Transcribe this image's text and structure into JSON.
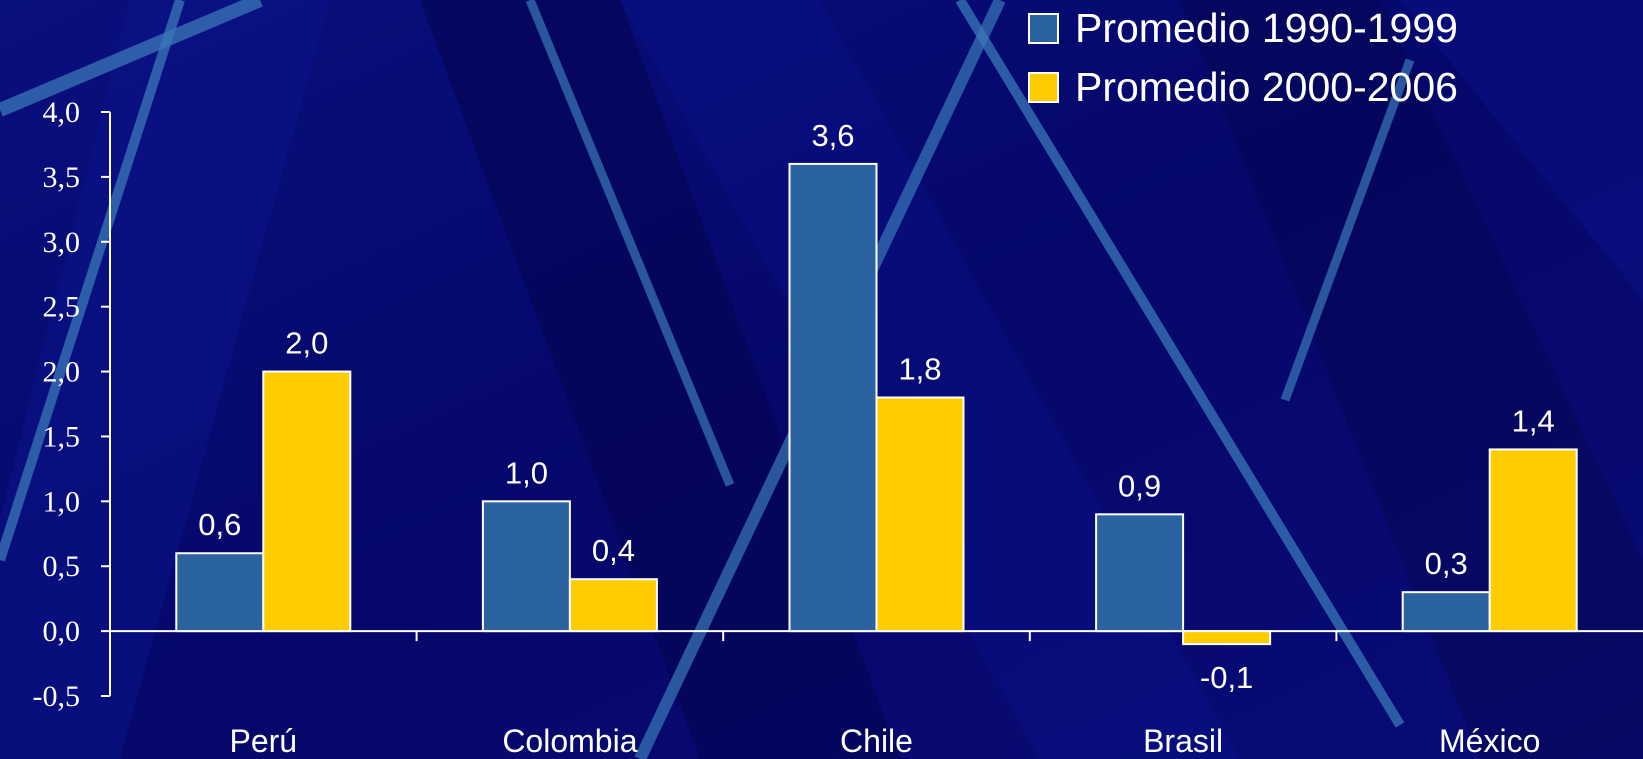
{
  "chart_data": {
    "type": "bar",
    "title": "",
    "xlabel": "",
    "ylabel": "",
    "categories": [
      "Perú",
      "Colombia",
      "Chile",
      "Brasil",
      "México"
    ],
    "series": [
      {
        "name": "Promedio 1990-1999",
        "values": [
          0.6,
          1.0,
          3.6,
          0.9,
          0.3
        ],
        "labels": [
          "0,6",
          "1,0",
          "3,6",
          "0,9",
          "0,3"
        ],
        "color": "#2b62a0"
      },
      {
        "name": "Promedio 2000-2006",
        "values": [
          2.0,
          0.4,
          1.8,
          -0.1,
          1.4
        ],
        "labels": [
          "2,0",
          "0,4",
          "1,8",
          "-0,1",
          "1,4"
        ],
        "color": "#ffcc00"
      }
    ],
    "ylim": [
      -0.5,
      4.0
    ],
    "yticks": [
      -0.5,
      0.0,
      0.5,
      1.0,
      1.5,
      2.0,
      2.5,
      3.0,
      3.5,
      4.0
    ],
    "ytick_labels": [
      "-0,5",
      "0,0",
      "0,5",
      "1,0",
      "1,5",
      "2,0",
      "2,5",
      "3,0",
      "3,5",
      "4,0"
    ],
    "grid": false,
    "legend_position": "top-right"
  },
  "colors": {
    "background": "#05076a",
    "axis": "#ffffff",
    "bar_outline": "#ffffff"
  }
}
